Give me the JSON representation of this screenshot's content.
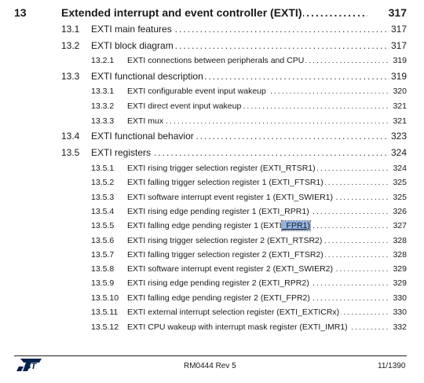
{
  "toc": [
    {
      "level": 0,
      "num": "13",
      "title": "Extended interrupt and event controller (EXTI)",
      "page": "317"
    },
    {
      "level": 1,
      "num": "13.1",
      "title": "EXTI main features",
      "page": "317"
    },
    {
      "level": 1,
      "num": "13.2",
      "title": "EXTI block diagram",
      "page": "317"
    },
    {
      "level": 2,
      "num": "13.2.1",
      "title": "EXTI connections between peripherals and CPU",
      "page": "319"
    },
    {
      "level": 1,
      "num": "13.3",
      "title": "EXTI functional description",
      "page": "319"
    },
    {
      "level": 2,
      "num": "13.3.1",
      "title": "EXTI configurable event input wakeup",
      "page": "320"
    },
    {
      "level": 2,
      "num": "13.3.2",
      "title": "EXTI direct event input wakeup",
      "page": "321"
    },
    {
      "level": 2,
      "num": "13.3.3",
      "title": "EXTI mux",
      "page": "321"
    },
    {
      "level": 1,
      "num": "13.4",
      "title": "EXTI functional behavior",
      "page": "323"
    },
    {
      "level": 1,
      "num": "13.5",
      "title": "EXTI registers",
      "page": "324"
    },
    {
      "level": 2,
      "num": "13.5.1",
      "title": "EXTI rising trigger selection register (EXTI_RTSR1)",
      "page": "324"
    },
    {
      "level": 2,
      "num": "13.5.2",
      "title": "EXTI falling trigger selection register 1 (EXTI_FTSR1)",
      "page": "325"
    },
    {
      "level": 2,
      "num": "13.5.3",
      "title": "EXTI software interrupt event register 1 (EXTI_SWIER1)",
      "page": "325"
    },
    {
      "level": 2,
      "num": "13.5.4",
      "title": "EXTI rising edge pending register 1 (EXTI_RPR1)",
      "page": "326"
    },
    {
      "level": 2,
      "num": "13.5.5",
      "title_pre": "EXTI falling edge pending register 1 (EXTI",
      "title_hl": "_FPR1)",
      "page": "327"
    },
    {
      "level": 2,
      "num": "13.5.6",
      "title": "EXTI rising trigger selection register 2 (EXTI_RTSR2)",
      "page": "328"
    },
    {
      "level": 2,
      "num": "13.5.7",
      "title": "EXTI falling trigger selection register 2 (EXTI_FTSR2)",
      "page": "328"
    },
    {
      "level": 2,
      "num": "13.5.8",
      "title": "EXTI software interrupt event register 2 (EXTI_SWIER2)",
      "page": "329"
    },
    {
      "level": 2,
      "num": "13.5.9",
      "title": "EXTI rising edge pending register 2 (EXTI_RPR2)",
      "page": "329"
    },
    {
      "level": 2,
      "num": "13.5.10",
      "title": "EXTI falling edge pending register 2 (EXTI_FPR2)",
      "page": "330"
    },
    {
      "level": 2,
      "num": "13.5.11",
      "title": "EXTI external interrupt selection register (EXTI_EXTICRx)",
      "page": "330"
    },
    {
      "level": 2,
      "num": "13.5.12",
      "title": "EXTI CPU wakeup with interrupt mask register (EXTI_IMR1)",
      "page": "332"
    }
  ],
  "footer": {
    "logo": "ST",
    "doc_id": "RM0444 Rev 5",
    "page_of": "11/1390"
  },
  "colors": {
    "highlight": "#8fb4e6",
    "text": "#1a1a1a"
  }
}
